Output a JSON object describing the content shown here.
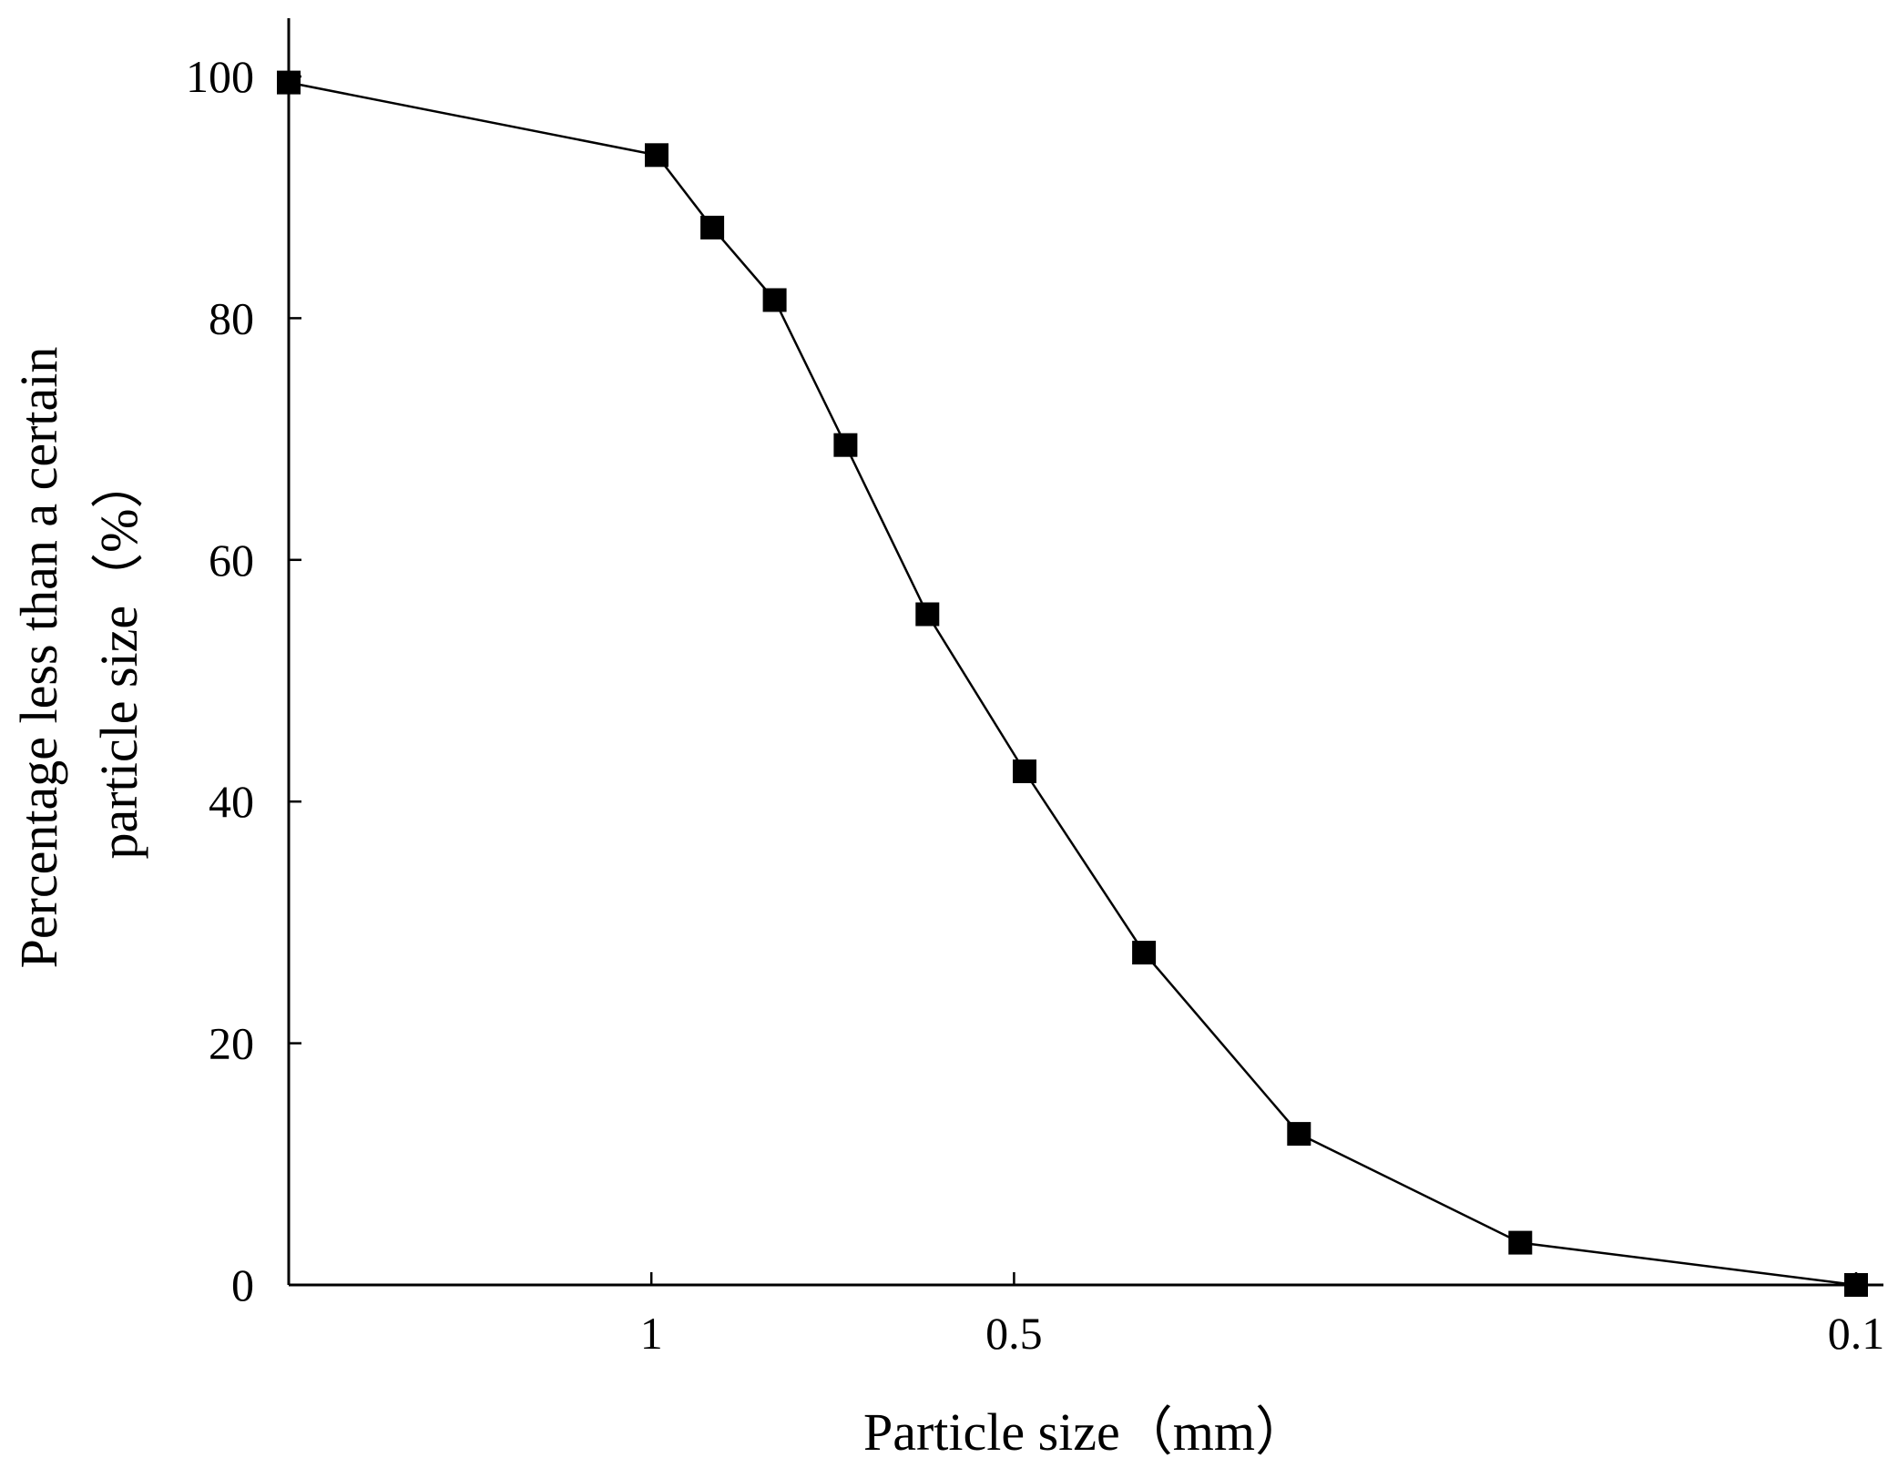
{
  "chart_data": {
    "type": "line",
    "x_scale": "log",
    "x_direction": "decreasing",
    "xlabel": "Particle size（mm）",
    "ylabel_lines": [
      "Percentage less than a certain",
      "particle size（%）"
    ],
    "xlim": [
      2,
      0.1
    ],
    "ylim": [
      0,
      100
    ],
    "x_ticks": [
      {
        "value": 1,
        "label": "1"
      },
      {
        "value": 0.5,
        "label": "0.5"
      },
      {
        "value": 0.1,
        "label": "0.1"
      }
    ],
    "y_ticks": [
      {
        "value": 0,
        "label": "0"
      },
      {
        "value": 20,
        "label": "20"
      },
      {
        "value": 40,
        "label": "40"
      },
      {
        "value": 60,
        "label": "60"
      },
      {
        "value": 80,
        "label": "80"
      },
      {
        "value": 100,
        "label": "100"
      }
    ],
    "grid": false,
    "series": [
      {
        "marker": "square",
        "color": "#000000",
        "points": [
          {
            "x": 2.0,
            "y": 99.5
          },
          {
            "x": 0.99,
            "y": 93.5
          },
          {
            "x": 0.89,
            "y": 87.5
          },
          {
            "x": 0.79,
            "y": 81.5
          },
          {
            "x": 0.69,
            "y": 69.5
          },
          {
            "x": 0.59,
            "y": 55.5
          },
          {
            "x": 0.49,
            "y": 42.5
          },
          {
            "x": 0.39,
            "y": 27.5
          },
          {
            "x": 0.29,
            "y": 12.5
          },
          {
            "x": 0.19,
            "y": 3.5
          },
          {
            "x": 0.1,
            "y": 0
          }
        ]
      }
    ]
  }
}
